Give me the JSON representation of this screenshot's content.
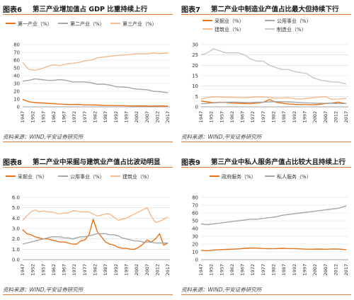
{
  "colors": {
    "accent": "#e0823b",
    "series_orange": "#e8711a",
    "series_gray": "#a6a6a6",
    "series_peach": "#f5b98a",
    "grid": "#d9d9d9"
  },
  "years": [
    "1947",
    "1952",
    "1957",
    "1962",
    "1967",
    "1972",
    "1977",
    "1982",
    "1987",
    "1992",
    "1997",
    "2002",
    "2007",
    "2012",
    "2017"
  ],
  "panels": [
    {
      "fig_label": "图表6",
      "title": "第三产业增加值占 GDP 比重持续上行",
      "source": "资料来源：WIND,平安证券研究所",
      "chart_data": {
        "type": "line",
        "xlim": [
          1947,
          2018
        ],
        "ylim": [
          0,
          80
        ],
        "yticks": [
          0,
          10,
          20,
          30,
          40,
          50,
          60,
          70,
          80
        ],
        "ytick_labels": [
          "0",
          "10",
          "20",
          "30",
          "40",
          "50",
          "60",
          "70",
          "80"
        ],
        "legend_position": "top",
        "legend": [
          {
            "name": "第一产业（%）",
            "color": "#e8711a"
          },
          {
            "name": "第二产业（%）",
            "color": "#a6a6a6"
          },
          {
            "name": "第三产业（%）",
            "color": "#f5b98a"
          }
        ],
        "series": [
          {
            "name": "第一产业（%）",
            "color": "#e8711a",
            "x": [
              1947,
              1950,
              1953,
              1956,
              1959,
              1962,
              1965,
              1968,
              1971,
              1974,
              1977,
              1980,
              1983,
              1986,
              1989,
              1992,
              1995,
              1998,
              2001,
              2004,
              2007,
              2010,
              2013,
              2017
            ],
            "values": [
              9.5,
              6.5,
              5.5,
              5,
              4.5,
              4,
              3.5,
              3,
              3,
              3.2,
              2.5,
              2.5,
              2.3,
              1.8,
              1.7,
              1.6,
              1.5,
              1.3,
              1.1,
              1.2,
              1.1,
              1.0,
              1.2,
              0.9
            ]
          },
          {
            "name": "第二产业（%）",
            "color": "#a6a6a6",
            "x": [
              1947,
              1950,
              1953,
              1956,
              1959,
              1962,
              1965,
              1968,
              1971,
              1974,
              1977,
              1980,
              1983,
              1986,
              1989,
              1992,
              1995,
              1998,
              2001,
              2004,
              2007,
              2010,
              2013,
              2017
            ],
            "values": [
              33,
              34,
              36,
              35,
              34,
              34,
              35,
              34,
              32,
              32,
              32,
              31,
              29,
              29,
              28,
              26,
              25.5,
              25,
              23,
              22.5,
              22,
              20,
              19.5,
              18
            ]
          },
          {
            "name": "第三产业（%）",
            "color": "#f5b98a",
            "x": [
              1947,
              1950,
              1953,
              1956,
              1959,
              1962,
              1965,
              1968,
              1971,
              1974,
              1977,
              1980,
              1983,
              1986,
              1989,
              1992,
              1995,
              1998,
              2001,
              2004,
              2007,
              2010,
              2013,
              2017
            ],
            "values": [
              57,
              48,
              47,
              49,
              52,
              54,
              53,
              55,
              56,
              57,
              59,
              60,
              63,
              64,
              65,
              66,
              66.5,
              67,
              68,
              68,
              68,
              69,
              68.5,
              69
            ]
          }
        ]
      }
    },
    {
      "fig_label": "图表7",
      "title": "第二产业中制造业产值占比最大但持续下行",
      "source": "资料来源：WIND,平安证券研究所",
      "chart_data": {
        "type": "line",
        "xlim": [
          1947,
          2018
        ],
        "ylim": [
          0,
          30
        ],
        "yticks": [
          0,
          5,
          10,
          15,
          20,
          25,
          30
        ],
        "ytick_labels": [
          "0",
          "5",
          "10",
          "15",
          "20",
          "25",
          "30"
        ],
        "legend_position": "top-left",
        "legend": [
          {
            "name": "采掘业（%）",
            "color": "#e8711a"
          },
          {
            "name": "公用事业（%）",
            "color": "#a6a6a6"
          },
          {
            "name": "建筑业（%）",
            "color": "#f5b98a"
          },
          {
            "name": "制造业（%）",
            "color": "#c8c8c8"
          }
        ],
        "series": [
          {
            "name": "采掘业（%）",
            "color": "#e8711a",
            "x": [
              1947,
              1950,
              1953,
              1956,
              1959,
              1962,
              1965,
              1968,
              1971,
              1974,
              1977,
              1980,
              1983,
              1986,
              1989,
              1992,
              1995,
              1998,
              2001,
              2004,
              2007,
              2010,
              2013,
              2017
            ],
            "values": [
              2.8,
              2.4,
              2.0,
              2.2,
              2.1,
              1.8,
              1.7,
              1.6,
              1.5,
              1.8,
              2.2,
              3.5,
              2.2,
              1.8,
              1.4,
              1.2,
              1.1,
              1.1,
              1.0,
              1.2,
              1.6,
              1.8,
              2.3,
              1.5
            ]
          },
          {
            "name": "公用事业（%）",
            "color": "#a6a6a6",
            "x": [
              1947,
              1950,
              1953,
              1956,
              1959,
              1962,
              1965,
              1968,
              1971,
              1974,
              1977,
              1980,
              1983,
              1986,
              1989,
              1992,
              1995,
              1998,
              2001,
              2004,
              2007,
              2010,
              2013,
              2017
            ],
            "values": [
              1.5,
              1.7,
              1.9,
              2.1,
              2.2,
              2.3,
              2.2,
              2.1,
              2.1,
              2.2,
              2.3,
              2.4,
              2.5,
              2.5,
              2.4,
              2.3,
              2.0,
              1.9,
              1.8,
              1.7,
              1.7,
              1.7,
              1.6,
              1.6
            ]
          },
          {
            "name": "建筑业（%）",
            "color": "#f5b98a",
            "x": [
              1947,
              1950,
              1953,
              1956,
              1959,
              1962,
              1965,
              1968,
              1971,
              1974,
              1977,
              1980,
              1983,
              1986,
              1989,
              1992,
              1995,
              1998,
              2001,
              2004,
              2007,
              2010,
              2013,
              2017
            ],
            "values": [
              3.8,
              4.5,
              4.8,
              4.7,
              4.6,
              4.6,
              4.5,
              4.4,
              4.6,
              4.8,
              4.7,
              4.5,
              4.2,
              4.3,
              4.4,
              3.9,
              3.8,
              4.1,
              4.4,
              4.7,
              4.9,
              3.6,
              3.7,
              4.1
            ]
          },
          {
            "name": "制造业（%）",
            "color": "#c8c8c8",
            "x": [
              1947,
              1950,
              1953,
              1956,
              1959,
              1962,
              1965,
              1968,
              1971,
              1974,
              1977,
              1980,
              1983,
              1986,
              1989,
              1992,
              1995,
              1998,
              2001,
              2004,
              2007,
              2010,
              2013,
              2017
            ],
            "values": [
              25,
              26,
              28,
              27,
              26,
              26,
              26,
              25,
              23,
              22,
              22,
              20,
              19,
              18,
              18,
              17,
              16.5,
              16,
              14,
              13,
              12.5,
              12,
              12,
              11
            ]
          }
        ]
      }
    },
    {
      "fig_label": "图表8",
      "title": "第二产业中采掘与建筑业产值占比波动明显",
      "source": "资料来源：WIND,平安证券研究所",
      "chart_data": {
        "type": "line",
        "xlim": [
          1947,
          2018
        ],
        "ylim": [
          0,
          6
        ],
        "yticks": [
          0,
          1,
          2,
          3,
          4,
          5,
          6
        ],
        "ytick_labels": [
          "0.0",
          "1.0",
          "2.0",
          "3.0",
          "4.0",
          "5.0",
          "6.0"
        ],
        "legend_position": "top",
        "legend": [
          {
            "name": "采掘业（%）",
            "color": "#e8711a"
          },
          {
            "name": "公用事业（%）",
            "color": "#a6a6a6"
          },
          {
            "name": "建筑业（%）",
            "color": "#f5b98a"
          }
        ],
        "series": [
          {
            "name": "采掘业（%）",
            "color": "#e8711a",
            "x": [
              1947,
              1949,
              1951,
              1953,
              1955,
              1957,
              1959,
              1961,
              1963,
              1965,
              1967,
              1969,
              1971,
              1973,
              1975,
              1977,
              1979,
              1981,
              1983,
              1985,
              1987,
              1989,
              1991,
              1993,
              1995,
              1997,
              1999,
              2001,
              2003,
              2005,
              2007,
              2009,
              2011,
              2013,
              2015,
              2017
            ],
            "values": [
              2.9,
              2.5,
              2.4,
              2.2,
              2.1,
              2.0,
              2.0,
              1.9,
              1.8,
              1.7,
              1.7,
              1.6,
              1.5,
              1.5,
              1.8,
              1.9,
              2.4,
              3.9,
              2.7,
              2.2,
              1.7,
              1.5,
              1.4,
              1.2,
              1.1,
              1.1,
              1.0,
              1.0,
              1.2,
              1.5,
              1.9,
              1.7,
              2.0,
              2.5,
              1.4,
              1.6
            ]
          },
          {
            "name": "公用事业（%）",
            "color": "#a6a6a6",
            "x": [
              1947,
              1949,
              1951,
              1953,
              1955,
              1957,
              1959,
              1961,
              1963,
              1965,
              1967,
              1969,
              1971,
              1973,
              1975,
              1977,
              1979,
              1981,
              1983,
              1985,
              1987,
              1989,
              1991,
              1993,
              1995,
              1997,
              1999,
              2001,
              2003,
              2005,
              2007,
              2009,
              2011,
              2013,
              2015,
              2017
            ],
            "values": [
              1.5,
              1.6,
              1.7,
              1.8,
              1.9,
              2.0,
              2.1,
              2.2,
              2.2,
              2.2,
              2.1,
              2.1,
              2.0,
              2.1,
              2.2,
              2.2,
              2.3,
              2.4,
              2.5,
              2.5,
              2.5,
              2.4,
              2.4,
              2.3,
              2.1,
              2.0,
              1.9,
              1.8,
              1.8,
              1.7,
              1.7,
              1.7,
              1.6,
              1.6,
              1.6,
              1.6
            ]
          },
          {
            "name": "建筑业（%）",
            "color": "#f5b98a",
            "x": [
              1947,
              1949,
              1951,
              1953,
              1955,
              1957,
              1959,
              1961,
              1963,
              1965,
              1967,
              1969,
              1971,
              1973,
              1975,
              1977,
              1979,
              1981,
              1983,
              1985,
              1987,
              1989,
              1991,
              1993,
              1995,
              1997,
              1999,
              2001,
              2003,
              2005,
              2007,
              2009,
              2011,
              2013,
              2015,
              2017
            ],
            "values": [
              3.8,
              4.2,
              4.6,
              4.8,
              4.6,
              4.7,
              4.6,
              4.6,
              4.5,
              4.4,
              4.5,
              4.5,
              4.7,
              4.7,
              4.6,
              4.6,
              4.6,
              4.4,
              4.2,
              4.3,
              4.4,
              4.4,
              4.1,
              3.8,
              3.9,
              4.0,
              4.2,
              4.4,
              4.6,
              4.8,
              5.0,
              4.2,
              3.6,
              3.7,
              3.9,
              4.1
            ]
          }
        ]
      }
    },
    {
      "fig_label": "图表9",
      "title": "第三产业中私人服务产值占比较大且持续上行",
      "source": "资料来源：WIND,平安证券研究所",
      "chart_data": {
        "type": "line",
        "xlim": [
          1947,
          2018
        ],
        "ylim": [
          0,
          80
        ],
        "yticks": [
          0,
          10,
          20,
          30,
          40,
          50,
          60,
          70,
          80
        ],
        "ytick_labels": [
          "0",
          "10",
          "20",
          "30",
          "40",
          "50",
          "60",
          "70",
          "80"
        ],
        "legend_position": "top",
        "legend": [
          {
            "name": "政府服务（%）",
            "color": "#e8711a"
          },
          {
            "name": "私人服务（%）",
            "color": "#a6a6a6"
          }
        ],
        "series": [
          {
            "name": "政府服务（%）",
            "color": "#e8711a",
            "x": [
              1947,
              1950,
              1953,
              1956,
              1959,
              1962,
              1965,
              1968,
              1971,
              1974,
              1977,
              1980,
              1983,
              1986,
              1989,
              1992,
              1995,
              1998,
              2001,
              2004,
              2007,
              2010,
              2013,
              2017
            ],
            "values": [
              12,
              11.5,
              12.5,
              12.8,
              13.2,
              13.5,
              13.8,
              14.5,
              15,
              14.8,
              14.3,
              14,
              14.2,
              14.5,
              14.3,
              14.2,
              13.8,
              13.5,
              13.5,
              13.6,
              13.4,
              13.7,
              13.6,
              12.8
            ]
          },
          {
            "name": "私人服务（%）",
            "color": "#a6a6a6",
            "x": [
              1947,
              1950,
              1953,
              1956,
              1959,
              1962,
              1965,
              1968,
              1971,
              1974,
              1977,
              1980,
              1983,
              1986,
              1989,
              1992,
              1995,
              1998,
              2001,
              2004,
              2007,
              2010,
              2013,
              2017
            ],
            "values": [
              46,
              45,
              46,
              47,
              48,
              49,
              50,
              51,
              52,
              52,
              53,
              54,
              55,
              57,
              58,
              59,
              60,
              61,
              62,
              63,
              64,
              65,
              66,
              69
            ]
          }
        ]
      }
    }
  ]
}
